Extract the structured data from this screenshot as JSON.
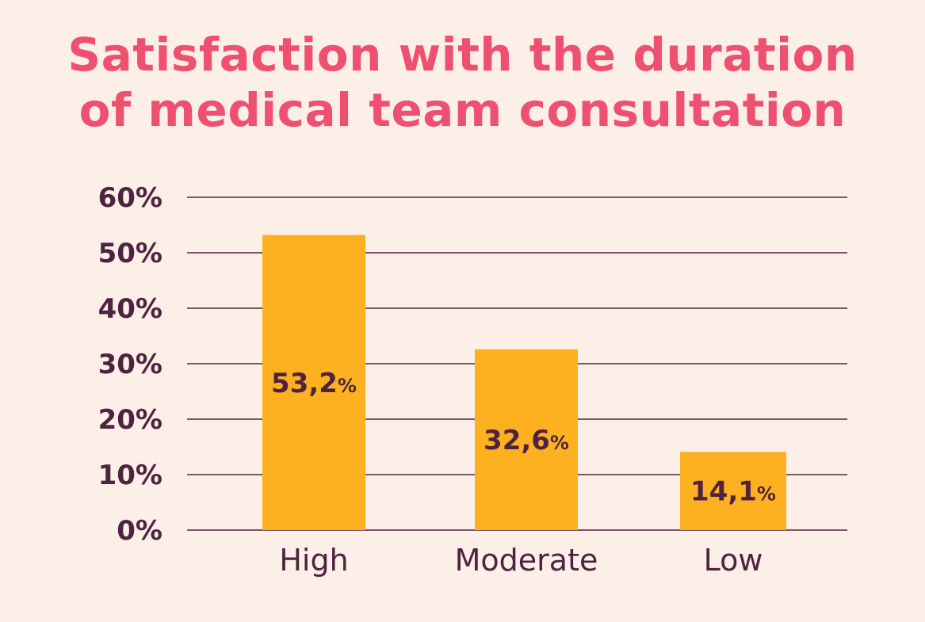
{
  "colors": {
    "background": "#FCEFE7",
    "title": "#EE5070",
    "bar": "#FEB120",
    "text": "#4E2340",
    "grid": "#4E2340"
  },
  "chart_data": {
    "type": "bar",
    "title_lines": [
      "Satisfaction with the duration",
      "of medical team consultation"
    ],
    "categories": [
      "High",
      "Moderate",
      "Low"
    ],
    "values": [
      53.2,
      32.6,
      14.1
    ],
    "value_labels": [
      "53,2",
      "32,6",
      "14,1"
    ],
    "value_suffix": "%",
    "ylim": [
      0,
      60
    ],
    "yticks": [
      0,
      10,
      20,
      30,
      40,
      50,
      60
    ],
    "ytick_labels": [
      "0%",
      "10%",
      "20%",
      "30%",
      "40%",
      "50%",
      "60%"
    ],
    "xlabel": "",
    "ylabel": "",
    "grid": true
  }
}
